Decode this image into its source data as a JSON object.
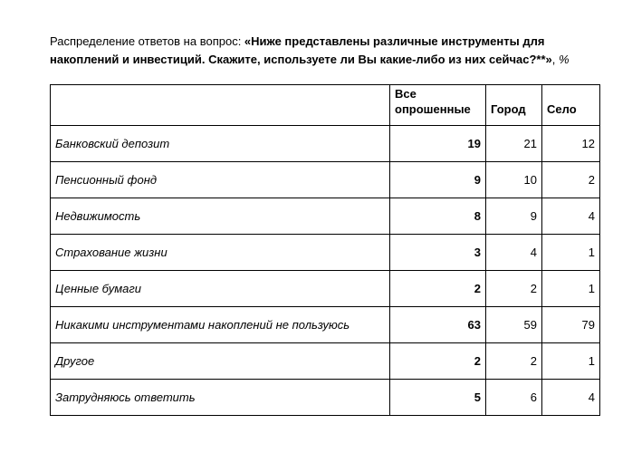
{
  "title": {
    "prefix": "Распределение ответов на вопрос: ",
    "question_bold": "«Ниже представлены различные инструменты для накоплений и инвестиций. Скажите, используете ли Вы какие-либо из них сейчас?**»",
    "comma": ", ",
    "unit": "%"
  },
  "table": {
    "columns": [
      "Все опрошенные",
      "Город",
      "Село"
    ],
    "rows": [
      {
        "label": "Банковский депозит",
        "values": [
          "19",
          "21",
          "12"
        ]
      },
      {
        "label": "Пенсионный фонд",
        "values": [
          "9",
          "10",
          "2"
        ]
      },
      {
        "label": "Недвижимость",
        "values": [
          "8",
          "9",
          "4"
        ]
      },
      {
        "label": "Страхование жизни",
        "values": [
          "3",
          "4",
          "1"
        ]
      },
      {
        "label": "Ценные бумаги",
        "values": [
          "2",
          "2",
          "1"
        ]
      },
      {
        "label": "Никакими инструментами накоплений не пользуюсь",
        "values": [
          "63",
          "59",
          "79"
        ]
      },
      {
        "label": "Другое",
        "values": [
          "2",
          "2",
          "1"
        ]
      },
      {
        "label": "Затрудняюсь ответить",
        "values": [
          "5",
          "6",
          "4"
        ]
      }
    ]
  }
}
